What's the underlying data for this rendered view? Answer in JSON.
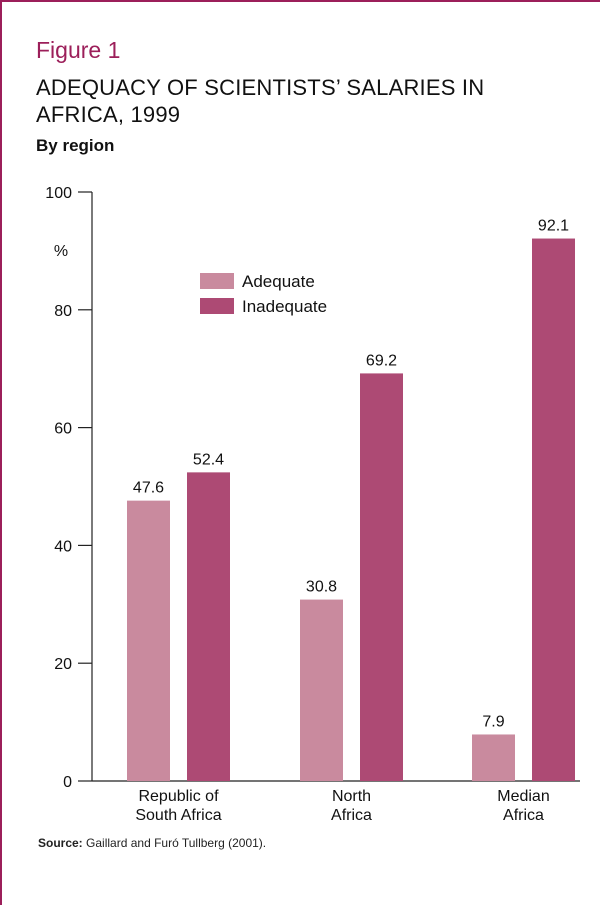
{
  "figure": {
    "label": "Figure 1",
    "title": "ADEQUACY OF SCIENTISTS’ SALARIES IN AFRICA, 1999",
    "subtitle": "By region",
    "source_label": "Source:",
    "source_text": "Gaillard and Furó Tullberg (2001)."
  },
  "colors": {
    "accent": "#9c1f5a",
    "adequate": "#c98a9e",
    "inadequate": "#ad4a74"
  },
  "chart_data": {
    "type": "bar",
    "title": "ADEQUACY OF SCIENTISTS’ SALARIES IN AFRICA, 1999",
    "subtitle": "By region",
    "xlabel": "",
    "ylabel": "%",
    "ylim": [
      0,
      100
    ],
    "yticks": [
      0,
      20,
      40,
      60,
      80,
      100
    ],
    "grid": false,
    "legend_position": "top-center",
    "categories": [
      "Republic of South Africa",
      "North Africa",
      "Median Africa"
    ],
    "category_lines": [
      [
        "Republic of",
        "South Africa"
      ],
      [
        "North",
        "Africa"
      ],
      [
        "Median",
        "Africa"
      ]
    ],
    "series": [
      {
        "name": "Adequate",
        "values": [
          47.6,
          30.8,
          7.9
        ]
      },
      {
        "name": "Inadequate",
        "values": [
          52.4,
          69.2,
          92.1
        ]
      }
    ]
  }
}
